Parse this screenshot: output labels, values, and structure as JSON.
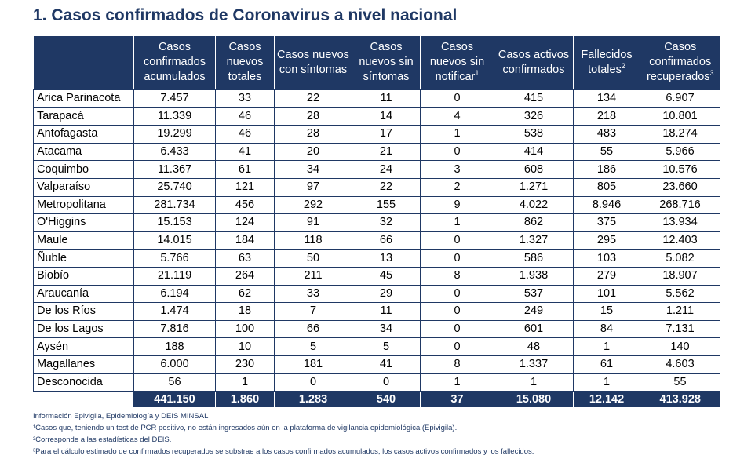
{
  "title": "1. Casos confirmados de Coronavirus a nivel nacional",
  "headers": [
    {
      "text": "",
      "sup": ""
    },
    {
      "text": "Casos confirmados acumulados",
      "sup": ""
    },
    {
      "text": "Casos nuevos totales",
      "sup": ""
    },
    {
      "text": "Casos nuevos con síntomas",
      "sup": ""
    },
    {
      "text": "Casos nuevos sin síntomas",
      "sup": ""
    },
    {
      "text": "Casos nuevos sin notificar",
      "sup": "1"
    },
    {
      "text": "Casos activos confirmados",
      "sup": ""
    },
    {
      "text": "Fallecidos totales",
      "sup": "2"
    },
    {
      "text": "Casos confirmados recuperados",
      "sup": "3"
    }
  ],
  "rows": [
    [
      "Arica Parinacota",
      "7.457",
      "33",
      "22",
      "11",
      "0",
      "415",
      "134",
      "6.907"
    ],
    [
      "Tarapacá",
      "11.339",
      "46",
      "28",
      "14",
      "4",
      "326",
      "218",
      "10.801"
    ],
    [
      "Antofagasta",
      "19.299",
      "46",
      "28",
      "17",
      "1",
      "538",
      "483",
      "18.274"
    ],
    [
      "Atacama",
      "6.433",
      "41",
      "20",
      "21",
      "0",
      "414",
      "55",
      "5.966"
    ],
    [
      "Coquimbo",
      "11.367",
      "61",
      "34",
      "24",
      "3",
      "608",
      "186",
      "10.576"
    ],
    [
      "Valparaíso",
      "25.740",
      "121",
      "97",
      "22",
      "2",
      "1.271",
      "805",
      "23.660"
    ],
    [
      "Metropolitana",
      "281.734",
      "456",
      "292",
      "155",
      "9",
      "4.022",
      "8.946",
      "268.716"
    ],
    [
      "O'Higgins",
      "15.153",
      "124",
      "91",
      "32",
      "1",
      "862",
      "375",
      "13.934"
    ],
    [
      "Maule",
      "14.015",
      "184",
      "118",
      "66",
      "0",
      "1.327",
      "295",
      "12.403"
    ],
    [
      "Ñuble",
      "5.766",
      "63",
      "50",
      "13",
      "0",
      "586",
      "103",
      "5.082"
    ],
    [
      "Biobío",
      "21.119",
      "264",
      "211",
      "45",
      "8",
      "1.938",
      "279",
      "18.907"
    ],
    [
      "Araucanía",
      "6.194",
      "62",
      "33",
      "29",
      "0",
      "537",
      "101",
      "5.562"
    ],
    [
      "De los Ríos",
      "1.474",
      "18",
      "7",
      "11",
      "0",
      "249",
      "15",
      "1.211"
    ],
    [
      "De los Lagos",
      "7.816",
      "100",
      "66",
      "34",
      "0",
      "601",
      "84",
      "7.131"
    ],
    [
      "Aysén",
      "188",
      "10",
      "5",
      "5",
      "0",
      "48",
      "1",
      "140"
    ],
    [
      "Magallanes",
      "6.000",
      "230",
      "181",
      "41",
      "8",
      "1.337",
      "61",
      "4.603"
    ],
    [
      "Desconocida",
      "56",
      "1",
      "0",
      "0",
      "1",
      "1",
      "1",
      "55"
    ]
  ],
  "totals": [
    "",
    "441.150",
    "1.860",
    "1.283",
    "540",
    "37",
    "15.080",
    "12.142",
    "413.928"
  ],
  "notes": [
    "Información Epivigila, Epidemiología y DEIS MINSAL",
    "¹Casos que, teniendo un test de PCR positivo, no están ingresados aún en la plataforma de vigilancia epidemiológica (Epivigila).",
    "²Corresponde a las estadísticas del DEIS.",
    "³Para el cálculo estimado de confirmados recuperados se substrae a los casos confirmados acumulados, los casos activos confirmados y los fallecidos."
  ]
}
